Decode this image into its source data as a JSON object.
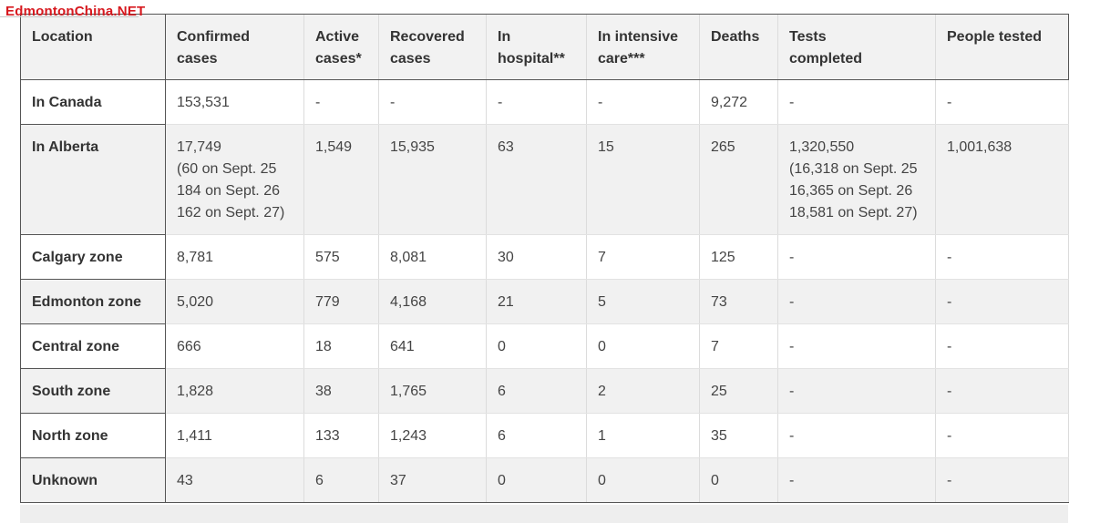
{
  "watermark": "EdmontonChina.NET",
  "table": {
    "headers": [
      [
        "Location"
      ],
      [
        "Confirmed",
        "cases"
      ],
      [
        "Active",
        "cases*"
      ],
      [
        "Recovered",
        "cases"
      ],
      [
        "In",
        "hospital**"
      ],
      [
        "In intensive",
        "care***"
      ],
      [
        "Deaths"
      ],
      [
        "Tests",
        "completed"
      ],
      [
        "People tested"
      ]
    ],
    "rows": [
      {
        "location": "In Canada",
        "cells": [
          [
            "153,531"
          ],
          [
            "-"
          ],
          [
            "-"
          ],
          [
            "-"
          ],
          [
            "-"
          ],
          [
            "9,272"
          ],
          [
            "-"
          ],
          [
            "-"
          ]
        ]
      },
      {
        "location": "In Alberta",
        "cells": [
          [
            "17,749",
            "(60 on Sept. 25",
            "184 on Sept. 26",
            "162 on Sept. 27)"
          ],
          [
            "1,549"
          ],
          [
            "15,935"
          ],
          [
            "63"
          ],
          [
            "15"
          ],
          [
            "265"
          ],
          [
            "1,320,550",
            "(16,318 on Sept. 25",
            "16,365 on Sept. 26",
            "18,581 on Sept. 27)"
          ],
          [
            "1,001,638"
          ]
        ]
      },
      {
        "location": "Calgary zone",
        "cells": [
          [
            "8,781"
          ],
          [
            "575"
          ],
          [
            "8,081"
          ],
          [
            "30"
          ],
          [
            "7"
          ],
          [
            "125"
          ],
          [
            "-"
          ],
          [
            "-"
          ]
        ]
      },
      {
        "location": "Edmonton zone",
        "cells": [
          [
            "5,020"
          ],
          [
            "779"
          ],
          [
            "4,168"
          ],
          [
            "21"
          ],
          [
            "5"
          ],
          [
            "73"
          ],
          [
            "-"
          ],
          [
            "-"
          ]
        ]
      },
      {
        "location": "Central zone",
        "cells": [
          [
            "666"
          ],
          [
            "18"
          ],
          [
            "641"
          ],
          [
            "0"
          ],
          [
            "0"
          ],
          [
            "7"
          ],
          [
            "-"
          ],
          [
            "-"
          ]
        ]
      },
      {
        "location": "South zone",
        "cells": [
          [
            "1,828"
          ],
          [
            "38"
          ],
          [
            "1,765"
          ],
          [
            "6"
          ],
          [
            "2"
          ],
          [
            "25"
          ],
          [
            "-"
          ],
          [
            "-"
          ]
        ]
      },
      {
        "location": "North zone",
        "cells": [
          [
            "1,411"
          ],
          [
            "133"
          ],
          [
            "1,243"
          ],
          [
            "6"
          ],
          [
            "1"
          ],
          [
            "35"
          ],
          [
            "-"
          ],
          [
            "-"
          ]
        ]
      },
      {
        "location": "Unknown",
        "cells": [
          [
            "43"
          ],
          [
            "6"
          ],
          [
            "37"
          ],
          [
            "0"
          ],
          [
            "0"
          ],
          [
            "0"
          ],
          [
            "-"
          ],
          [
            "-"
          ]
        ]
      }
    ]
  },
  "colors": {
    "watermark": "#d7191f",
    "header_bg": "#f2f2f2",
    "stripe_bg": "#f1f1f1",
    "border_dark": "#555555",
    "text": "#333333"
  }
}
